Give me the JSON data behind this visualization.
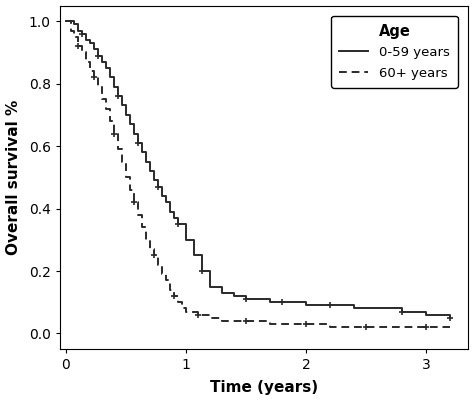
{
  "xlabel": "Time (years)",
  "ylabel": "Overall survival %",
  "xlim": [
    -0.05,
    3.35
  ],
  "ylim": [
    -0.05,
    1.05
  ],
  "xticks": [
    0,
    1,
    2,
    3
  ],
  "yticks": [
    0.0,
    0.2,
    0.4,
    0.6,
    0.8,
    1.0
  ],
  "legend_title": "Age",
  "legend_labels": [
    "0-59 years",
    "60+ years"
  ],
  "line_color": "#2a2a2a",
  "background_color": "#ffffff",
  "group1_steps": {
    "times": [
      0,
      0.07,
      0.1,
      0.13,
      0.17,
      0.2,
      0.23,
      0.27,
      0.3,
      0.33,
      0.37,
      0.4,
      0.43,
      0.47,
      0.5,
      0.53,
      0.57,
      0.6,
      0.63,
      0.67,
      0.7,
      0.73,
      0.77,
      0.8,
      0.83,
      0.87,
      0.9,
      0.93,
      1.0,
      1.07,
      1.13,
      1.2,
      1.3,
      1.4,
      1.5,
      1.6,
      1.7,
      1.8,
      2.0,
      2.2,
      2.4,
      2.6,
      2.8,
      3.0,
      3.2
    ],
    "survival": [
      1.0,
      0.99,
      0.97,
      0.96,
      0.94,
      0.93,
      0.91,
      0.89,
      0.87,
      0.85,
      0.82,
      0.79,
      0.76,
      0.73,
      0.7,
      0.67,
      0.64,
      0.61,
      0.58,
      0.55,
      0.52,
      0.49,
      0.47,
      0.44,
      0.42,
      0.39,
      0.37,
      0.35,
      0.3,
      0.25,
      0.2,
      0.15,
      0.13,
      0.12,
      0.11,
      0.11,
      0.1,
      0.1,
      0.09,
      0.09,
      0.08,
      0.08,
      0.07,
      0.06,
      0.05
    ]
  },
  "group1_censors": {
    "times": [
      0.13,
      0.27,
      0.43,
      0.6,
      0.77,
      0.93,
      1.13,
      1.5,
      1.8,
      2.2,
      2.8,
      3.2
    ],
    "survival": [
      0.96,
      0.89,
      0.76,
      0.61,
      0.47,
      0.35,
      0.2,
      0.11,
      0.1,
      0.09,
      0.07,
      0.05
    ]
  },
  "group2_steps": {
    "times": [
      0,
      0.04,
      0.07,
      0.1,
      0.13,
      0.17,
      0.2,
      0.23,
      0.27,
      0.3,
      0.33,
      0.37,
      0.4,
      0.43,
      0.47,
      0.5,
      0.53,
      0.57,
      0.6,
      0.63,
      0.67,
      0.7,
      0.73,
      0.77,
      0.8,
      0.83,
      0.87,
      0.9,
      0.93,
      0.97,
      1.0,
      1.1,
      1.2,
      1.3,
      1.4,
      1.5,
      1.7,
      2.0,
      2.2,
      2.5,
      2.7,
      3.0,
      3.2
    ],
    "survival": [
      1.0,
      0.97,
      0.95,
      0.92,
      0.9,
      0.87,
      0.84,
      0.82,
      0.79,
      0.75,
      0.72,
      0.68,
      0.64,
      0.59,
      0.55,
      0.5,
      0.46,
      0.42,
      0.38,
      0.34,
      0.3,
      0.27,
      0.25,
      0.22,
      0.19,
      0.17,
      0.14,
      0.12,
      0.1,
      0.08,
      0.07,
      0.06,
      0.05,
      0.04,
      0.04,
      0.04,
      0.03,
      0.03,
      0.02,
      0.02,
      0.02,
      0.02,
      0.02
    ]
  },
  "group2_censors": {
    "times": [
      0.1,
      0.23,
      0.4,
      0.57,
      0.73,
      0.9,
      1.1,
      1.5,
      2.0,
      2.5,
      3.0
    ],
    "survival": [
      0.92,
      0.82,
      0.64,
      0.42,
      0.25,
      0.12,
      0.06,
      0.04,
      0.03,
      0.02,
      0.02
    ]
  }
}
